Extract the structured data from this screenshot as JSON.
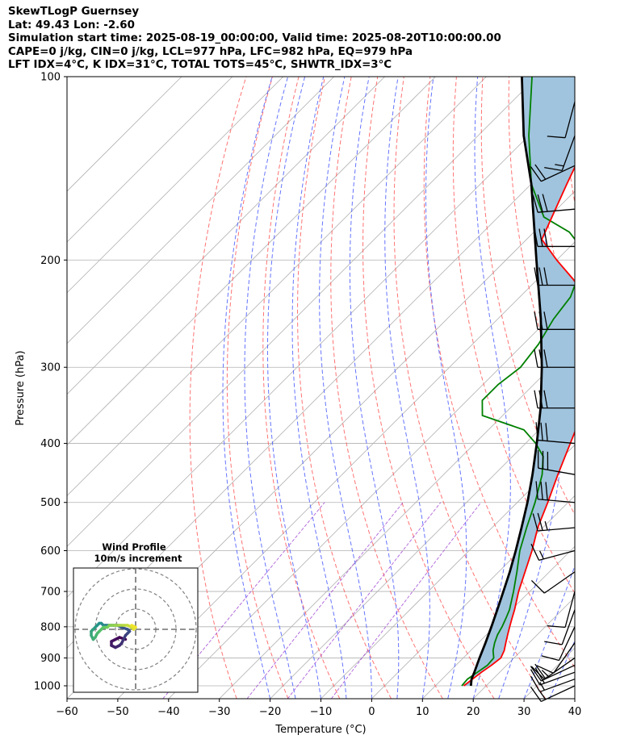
{
  "header": {
    "line1": "SkewTLogP Guernsey",
    "line2": "Lat: 49.43   Lon: -2.60",
    "line3": "Simulation start time: 2025-08-19_00:00:00, Valid time: 2025-08-20T10:00:00.00",
    "line4": "CAPE=0 j/kg, CIN=0 j/kg, LCL=977 hPa, LFC=982 hPa, EQ=979 hPa",
    "line5": "LFT IDX=4°C, K IDX=31°C, TOTAL TOTS=45°C, SHWTR_IDX=3°C"
  },
  "chart_data": {
    "type": "line",
    "title": "SkewTLogP Guernsey",
    "xlabel": "Temperature (°C)",
    "ylabel": "Pressure (hPa)",
    "xlim": [
      -60,
      40
    ],
    "ylim": [
      1050,
      100
    ],
    "yscale": "log",
    "skew": "45 degrees",
    "grid": true,
    "x_ticks": [
      -60,
      -50,
      -40,
      -30,
      -20,
      -10,
      0,
      10,
      20,
      30,
      40
    ],
    "x_tick_labels": [
      "−60",
      "−50",
      "−40",
      "−30",
      "−20",
      "−10",
      "0",
      "10",
      "20",
      "30",
      "40"
    ],
    "y_ticks": [
      1000,
      900,
      800,
      700,
      600,
      500,
      400,
      300,
      200,
      100
    ],
    "y_tick_labels": [
      "1000",
      "900",
      "800",
      "700",
      "600",
      "500",
      "400",
      "300",
      "200",
      "100"
    ],
    "series": [
      {
        "name": "Temperature",
        "color": "#ff0000",
        "points": [
          [
            1000,
            15.6
          ],
          [
            975,
            16
          ],
          [
            950,
            16.4
          ],
          [
            925,
            17
          ],
          [
            900,
            17.4
          ],
          [
            875,
            16.6
          ],
          [
            850,
            15.4
          ],
          [
            825,
            14.2
          ],
          [
            800,
            13
          ],
          [
            775,
            11.8
          ],
          [
            750,
            10.6
          ],
          [
            700,
            7.8
          ],
          [
            650,
            5.2
          ],
          [
            600,
            2.4
          ],
          [
            550,
            -1
          ],
          [
            500,
            -4
          ],
          [
            450,
            -7.5
          ],
          [
            400,
            -11.2
          ],
          [
            350,
            -15.4
          ],
          [
            300,
            -23
          ],
          [
            250,
            -32
          ],
          [
            230,
            -37
          ],
          [
            215,
            -43
          ],
          [
            200,
            -50
          ],
          [
            185,
            -57
          ],
          [
            150,
            -63
          ],
          [
            125,
            -68
          ],
          [
            100,
            -73
          ]
        ]
      },
      {
        "name": "Dewpoint",
        "color": "#008000",
        "points": [
          [
            1000,
            15.2
          ],
          [
            975,
            15
          ],
          [
            950,
            15.6
          ],
          [
            925,
            16.2
          ],
          [
            900,
            16
          ],
          [
            875,
            14.4
          ],
          [
            850,
            13.2
          ],
          [
            825,
            12.2
          ],
          [
            800,
            11.5
          ],
          [
            775,
            10.6
          ],
          [
            750,
            9.6
          ],
          [
            700,
            6.8
          ],
          [
            650,
            3.6
          ],
          [
            600,
            0
          ],
          [
            550,
            -3.2
          ],
          [
            500,
            -6.5
          ],
          [
            450,
            -10.6
          ],
          [
            420,
            -14
          ],
          [
            400,
            -18
          ],
          [
            380,
            -23
          ],
          [
            360,
            -34
          ],
          [
            340,
            -37
          ],
          [
            320,
            -37
          ],
          [
            300,
            -36
          ],
          [
            275,
            -37
          ],
          [
            250,
            -39
          ],
          [
            230,
            -40
          ],
          [
            210,
            -43
          ],
          [
            200,
            -44
          ],
          [
            190,
            -48
          ],
          [
            180,
            -53
          ],
          [
            170,
            -61
          ],
          [
            150,
            -70
          ],
          [
            125,
            -80
          ],
          [
            100,
            -91
          ]
        ]
      },
      {
        "name": "Parcel",
        "color": "#000000",
        "points": [
          [
            1000,
            17
          ],
          [
            975,
            15.8
          ],
          [
            950,
            15
          ],
          [
            900,
            13.2
          ],
          [
            850,
            11.4
          ],
          [
            800,
            9.4
          ],
          [
            750,
            7.2
          ],
          [
            700,
            4.8
          ],
          [
            650,
            2.2
          ],
          [
            600,
            -0.8
          ],
          [
            550,
            -4.2
          ],
          [
            500,
            -8
          ],
          [
            450,
            -12.5
          ],
          [
            400,
            -17.8
          ],
          [
            350,
            -24
          ],
          [
            300,
            -31.8
          ],
          [
            250,
            -41.5
          ],
          [
            200,
            -54
          ],
          [
            150,
            -70
          ],
          [
            125,
            -81
          ],
          [
            100,
            -93
          ]
        ]
      }
    ],
    "shading": {
      "between": [
        "Temperature",
        "Parcel"
      ],
      "color": "#a0c4de"
    },
    "wind_barbs": [
      {
        "p": 1000,
        "dir": 245,
        "speed_kt": 15
      },
      {
        "p": 975,
        "dir": 250,
        "speed_kt": 15
      },
      {
        "p": 950,
        "dir": 250,
        "speed_kt": 20
      },
      {
        "p": 925,
        "dir": 245,
        "speed_kt": 20
      },
      {
        "p": 900,
        "dir": 235,
        "speed_kt": 15
      },
      {
        "p": 850,
        "dir": 215,
        "speed_kt": 10
      },
      {
        "p": 800,
        "dir": 205,
        "speed_kt": 10
      },
      {
        "p": 750,
        "dir": 200,
        "speed_kt": 10
      },
      {
        "p": 700,
        "dir": 195,
        "speed_kt": 10
      },
      {
        "p": 650,
        "dir": 235,
        "speed_kt": 10
      },
      {
        "p": 600,
        "dir": 255,
        "speed_kt": 15
      },
      {
        "p": 550,
        "dir": 265,
        "speed_kt": 25
      },
      {
        "p": 500,
        "dir": 275,
        "speed_kt": 30
      },
      {
        "p": 450,
        "dir": 280,
        "speed_kt": 30
      },
      {
        "p": 400,
        "dir": 275,
        "speed_kt": 30
      },
      {
        "p": 350,
        "dir": 270,
        "speed_kt": 30
      },
      {
        "p": 300,
        "dir": 270,
        "speed_kt": 30
      },
      {
        "p": 260,
        "dir": 270,
        "speed_kt": 30
      },
      {
        "p": 220,
        "dir": 270,
        "speed_kt": 30
      },
      {
        "p": 190,
        "dir": 270,
        "speed_kt": 30
      },
      {
        "p": 165,
        "dir": 265,
        "speed_kt": 30
      },
      {
        "p": 140,
        "dir": 245,
        "speed_kt": 20
      },
      {
        "p": 125,
        "dir": 200,
        "speed_kt": 15
      },
      {
        "p": 110,
        "dir": 195,
        "speed_kt": 10
      }
    ],
    "inset": {
      "title": "Wind Profile",
      "subtitle": "10m/s increment",
      "rings_ms": [
        10,
        20,
        30
      ],
      "hodograph_uv": [
        [
          -5,
          -5
        ],
        [
          -8,
          -4
        ],
        [
          -10,
          -5
        ],
        [
          -12,
          -6
        ],
        [
          -12,
          -8
        ],
        [
          -10,
          -9
        ],
        [
          -8,
          -8
        ],
        [
          -7,
          -7
        ],
        [
          -6,
          -5
        ],
        [
          -5,
          -3
        ],
        [
          -4,
          -2
        ],
        [
          -3,
          -1
        ],
        [
          -4,
          0
        ],
        [
          -7,
          1
        ],
        [
          -9,
          2
        ],
        [
          -10,
          2
        ],
        [
          -11,
          2
        ],
        [
          -12,
          2
        ],
        [
          -13,
          2
        ],
        [
          -14,
          2
        ],
        [
          -15,
          2
        ],
        [
          -16,
          2
        ],
        [
          -17,
          3
        ],
        [
          -18,
          3
        ],
        [
          -19,
          2
        ],
        [
          -20,
          1
        ],
        [
          -21,
          0
        ],
        [
          -22,
          -1
        ],
        [
          -22,
          -3
        ],
        [
          -21,
          -5
        ],
        [
          -20,
          -4
        ],
        [
          -19,
          -2
        ],
        [
          -18,
          -1
        ],
        [
          -17,
          0
        ],
        [
          -16,
          1
        ],
        [
          -15,
          1
        ],
        [
          -14,
          1
        ],
        [
          -13,
          2
        ],
        [
          -12,
          2
        ],
        [
          -10,
          2
        ],
        [
          -8,
          2
        ],
        [
          -6,
          2
        ],
        [
          -4,
          2
        ],
        [
          -2,
          1
        ],
        [
          -1,
          0
        ],
        [
          0,
          1
        ],
        [
          -2,
          2
        ]
      ]
    }
  }
}
